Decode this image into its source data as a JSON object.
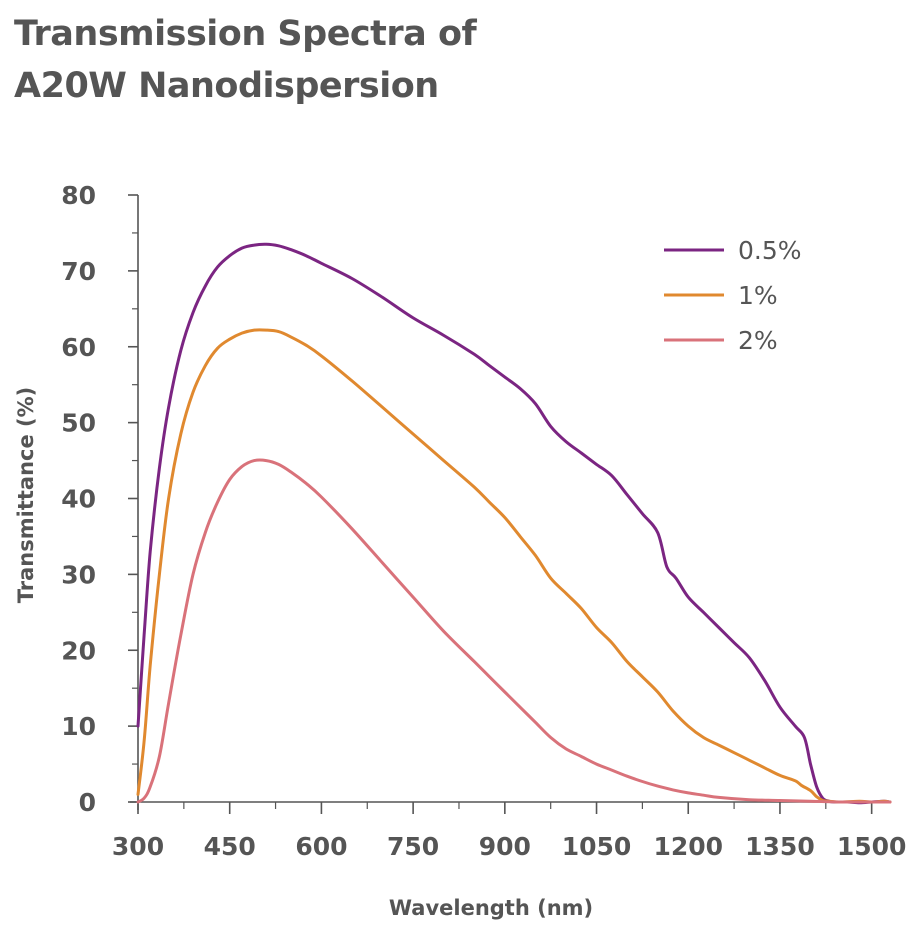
{
  "title_lines": [
    "Transmission Spectra of",
    "A20W Nanodispersion"
  ],
  "chart_data": {
    "type": "line",
    "xlabel": "Wavelength (nm)",
    "ylabel": "Transmittance (%)",
    "xlim": [
      300,
      1530
    ],
    "ylim": [
      0,
      80
    ],
    "x_ticks": [
      300,
      450,
      600,
      750,
      900,
      1050,
      1200,
      1350,
      1500
    ],
    "y_ticks": [
      0,
      10,
      20,
      30,
      40,
      50,
      60,
      70,
      80
    ],
    "grid": false,
    "legend_position": "top-right",
    "series": [
      {
        "name": "0.5%",
        "color": "#7b2582",
        "x": [
          300,
          310,
          320,
          335,
          350,
          370,
          390,
          410,
          430,
          450,
          470,
          490,
          510,
          530,
          550,
          575,
          600,
          650,
          700,
          750,
          800,
          850,
          875,
          900,
          925,
          950,
          975,
          1000,
          1025,
          1050,
          1075,
          1100,
          1125,
          1150,
          1165,
          1180,
          1200,
          1225,
          1250,
          1275,
          1300,
          1325,
          1350,
          1375,
          1390,
          1400,
          1410,
          1420,
          1430,
          1440,
          1460,
          1480,
          1500,
          1520,
          1530
        ],
        "y": [
          10,
          22,
          33,
          44,
          52,
          59.5,
          64.5,
          68,
          70.5,
          72,
          73,
          73.4,
          73.5,
          73.3,
          72.8,
          72,
          71,
          69,
          66.5,
          63.8,
          61.5,
          59,
          57.5,
          56,
          54.5,
          52.5,
          49.5,
          47.5,
          46,
          44.5,
          43,
          40.5,
          38,
          35.5,
          31,
          29.5,
          27,
          25,
          23,
          21,
          19,
          16,
          12.5,
          10,
          8.5,
          5,
          2,
          0.5,
          0.1,
          0,
          0,
          -0.1,
          0,
          0.1,
          0
        ]
      },
      {
        "name": "1%",
        "color": "#e0892f",
        "x": [
          300,
          310,
          320,
          335,
          350,
          370,
          390,
          410,
          430,
          450,
          470,
          490,
          510,
          530,
          550,
          575,
          600,
          650,
          700,
          750,
          800,
          850,
          875,
          900,
          925,
          950,
          975,
          1000,
          1025,
          1050,
          1075,
          1100,
          1125,
          1150,
          1175,
          1200,
          1225,
          1250,
          1275,
          1300,
          1325,
          1350,
          1375,
          1385,
          1400,
          1410,
          1420,
          1430,
          1450,
          1480,
          1500,
          1520,
          1530
        ],
        "y": [
          1,
          8,
          18,
          30,
          40,
          48.5,
          54,
          57.5,
          59.8,
          61,
          61.8,
          62.2,
          62.2,
          62,
          61.3,
          60.2,
          58.8,
          55.5,
          52,
          48.5,
          45,
          41.5,
          39.5,
          37.5,
          35,
          32.5,
          29.5,
          27.5,
          25.5,
          23,
          21,
          18.5,
          16.5,
          14.5,
          12,
          10,
          8.5,
          7.5,
          6.5,
          5.5,
          4.5,
          3.5,
          2.8,
          2.2,
          1.5,
          0.7,
          0.2,
          0.1,
          0,
          0.1,
          0,
          0.1,
          0
        ]
      },
      {
        "name": "2%",
        "color": "#d9727a",
        "x": [
          300,
          310,
          320,
          335,
          350,
          370,
          390,
          410,
          430,
          450,
          470,
          490,
          510,
          530,
          550,
          575,
          600,
          650,
          700,
          750,
          800,
          850,
          875,
          900,
          925,
          950,
          975,
          1000,
          1025,
          1050,
          1075,
          1100,
          1125,
          1150,
          1175,
          1200,
          1225,
          1250,
          1300,
          1350,
          1400,
          1450,
          1500,
          1530
        ],
        "y": [
          0,
          0.5,
          2,
          6,
          13,
          22,
          30,
          35.5,
          39.5,
          42.5,
          44.2,
          45,
          45,
          44.5,
          43.5,
          42,
          40.2,
          36,
          31.5,
          27,
          22.5,
          18.5,
          16.5,
          14.5,
          12.5,
          10.5,
          8.5,
          7,
          6,
          5,
          4.2,
          3.4,
          2.7,
          2.1,
          1.6,
          1.2,
          0.9,
          0.6,
          0.3,
          0.2,
          0.1,
          0,
          0,
          0
        ]
      }
    ]
  }
}
